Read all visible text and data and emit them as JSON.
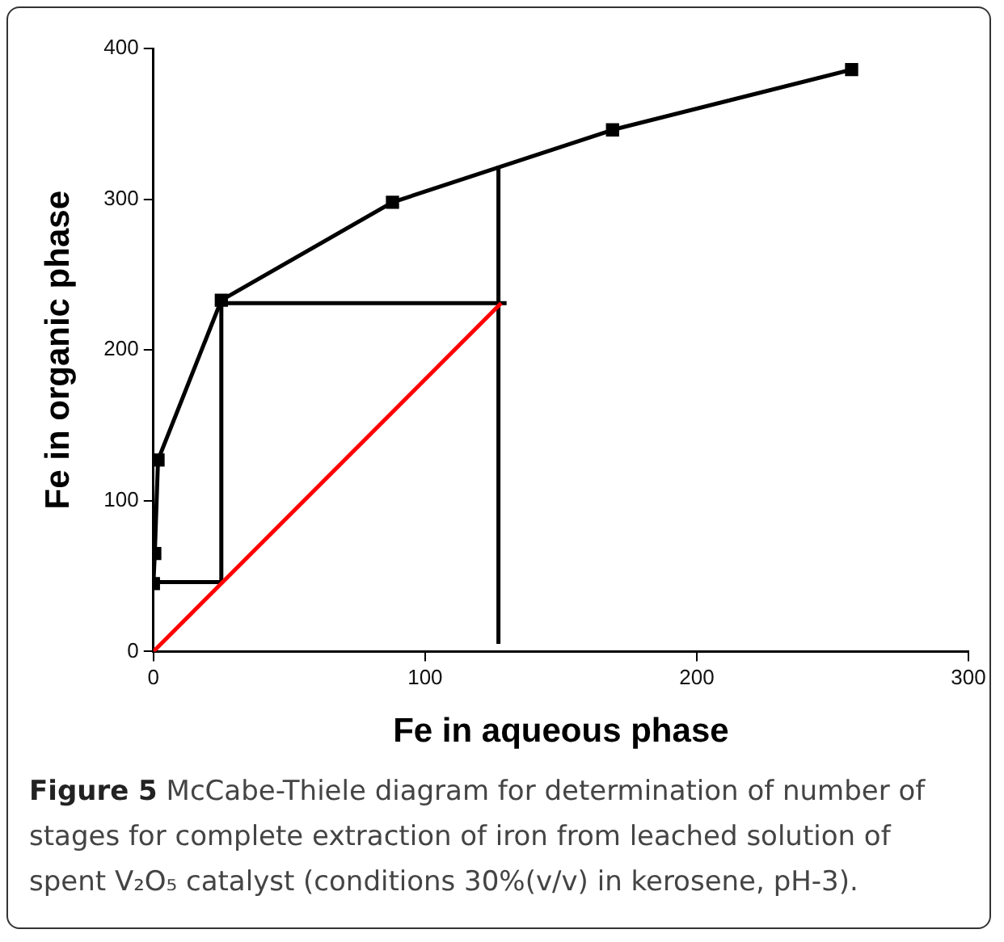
{
  "chart_data": {
    "type": "line",
    "xlabel": "Fe in aqueous phase",
    "ylabel": "Fe in organic phase",
    "xlim": [
      0,
      300
    ],
    "xticks": [
      0,
      100,
      200,
      300
    ],
    "ylim": [
      0,
      400
    ],
    "yticks": [
      0,
      100,
      200,
      300,
      400
    ],
    "grid": false,
    "legend": false,
    "series": [
      {
        "type": "line",
        "color": "#000000",
        "marker": "square",
        "x": [
          0,
          0.5,
          1.7,
          25,
          88,
          169,
          257
        ],
        "values": [
          45,
          65,
          127,
          233,
          298,
          346,
          386
        ]
      },
      {
        "type": "line",
        "color": "#ff0000",
        "marker": "none",
        "x": [
          0,
          128
        ],
        "values": [
          0,
          231
        ]
      },
      {
        "type": "line",
        "color": "#000000",
        "marker": "none",
        "x": [
          127,
          127
        ],
        "values": [
          5,
          322
        ]
      },
      {
        "type": "line",
        "color": "#000000",
        "marker": "none",
        "x": [
          130,
          25,
          25,
          0
        ],
        "values": [
          231,
          231,
          46,
          46
        ]
      }
    ],
    "annotations": [
      "Figure 5",
      "McCabe-Thiele diagram for determination of number of stages for complete extraction of iron from leached solution of spent V₂O₅ catalyst (conditions 30%(v/v) in kerosene, pH-3)."
    ]
  }
}
